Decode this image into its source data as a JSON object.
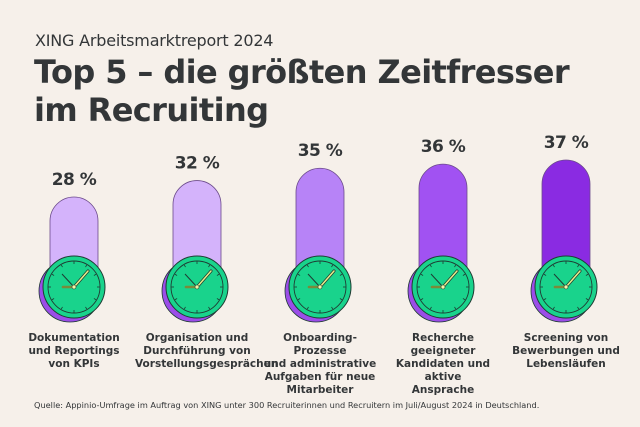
{
  "header": {
    "subtitle": "XING Arbeitsmarktreport 2024",
    "title": "Top 5 – die größten Zeitfresser im Recruiting"
  },
  "footer": {
    "source": "Quelle: Appinio-Umfrage im Auftrag von XING unter 300 Recruiterinnen und Recruitern im Juli/August 2024 in Deutschland."
  },
  "colors": {
    "background": "#f6f0ea",
    "text": "#333638",
    "clock_face": "#19d38c",
    "clock_shadow": "#9b4de8",
    "clock_outline": "#1f3b33",
    "bars": [
      "#d4b3fb",
      "#d4b3fb",
      "#b783f7",
      "#a152f2",
      "#8a2be2"
    ]
  },
  "chart_data": {
    "type": "bar",
    "title": "Top 5 – die größten Zeitfresser im Recruiting",
    "xlabel": "",
    "ylabel": "",
    "unit": "%",
    "categories": [
      "Dokumentation und Reportings von KPIs",
      "Organisation und Durchführung von Vorstellungsgesprächen",
      "Onboarding-Prozesse und administrative Aufgaben für neue Mitarbeiter",
      "Recherche geeigneter Kandidaten und aktive Ansprache",
      "Screening von Bewerbungen und Lebensläufen"
    ],
    "category_lines": [
      [
        "Dokumentation",
        "und Reportings",
        "von KPIs"
      ],
      [
        "Organisation und",
        "Durchführung von",
        "Vorstellungsgesprächen"
      ],
      [
        "Onboarding-Prozesse",
        "und administrative",
        "Aufgaben für neue",
        "Mitarbeiter"
      ],
      [
        "Recherche geeigneter",
        "Kandidaten und aktive",
        "Ansprache"
      ],
      [
        "Screening von",
        "Bewerbungen und",
        "Lebensläufen"
      ]
    ],
    "values": [
      28,
      32,
      35,
      36,
      37
    ],
    "value_labels": [
      "28 %",
      "32 %",
      "35 %",
      "36 %",
      "37 %"
    ],
    "ylim": [
      0,
      40
    ],
    "grid": false,
    "legend": "none"
  }
}
